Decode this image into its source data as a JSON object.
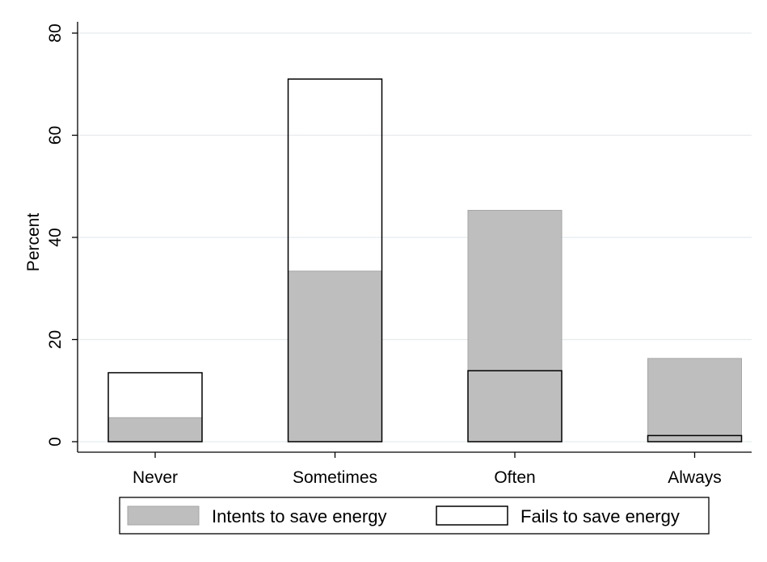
{
  "chart_data": {
    "type": "bar",
    "mode": "overlaid",
    "title": "",
    "xlabel": "",
    "ylabel": "Percent",
    "ylim": [
      0,
      82
    ],
    "yticks": [
      0,
      20,
      40,
      60,
      80
    ],
    "grid": true,
    "legend_position": "bottom",
    "categories": [
      "Never",
      "Sometimes",
      "Often",
      "Always"
    ],
    "series": [
      {
        "name": "Intents to save energy",
        "values": [
          4.7,
          33.4,
          45.3,
          16.3
        ],
        "fill": "#bebebe",
        "stroke": "#a6a6a6"
      },
      {
        "name": "Fails to save energy",
        "values": [
          13.5,
          71.0,
          13.9,
          1.2
        ],
        "fill": "none",
        "stroke": "#000000"
      }
    ],
    "colors": {
      "grid": "#e3ecee",
      "axis": "#000000",
      "background": "#ffffff"
    }
  }
}
